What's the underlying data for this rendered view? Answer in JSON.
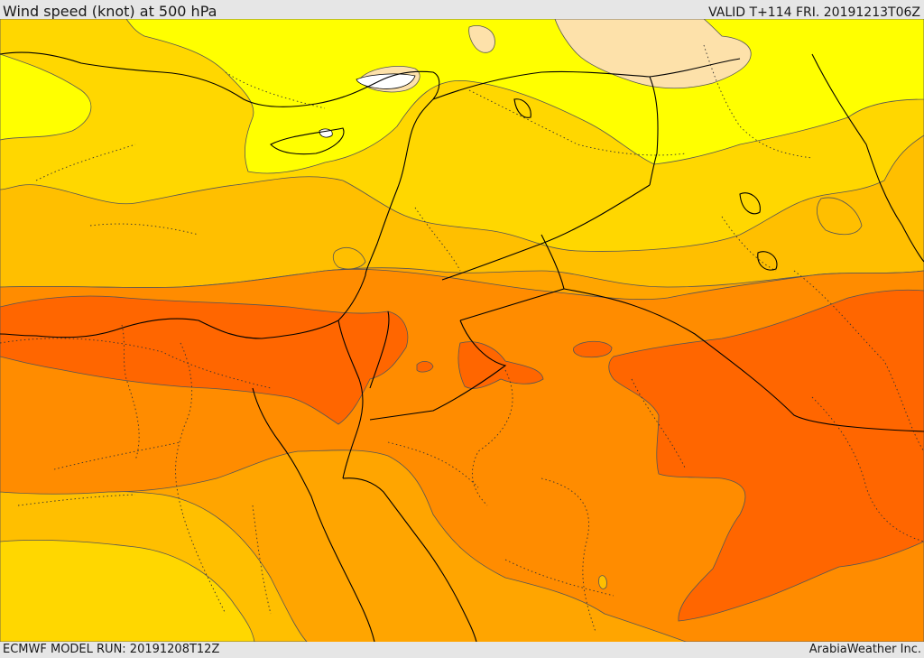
{
  "header": {
    "title": "Wind speed (knot) at 500 hPa",
    "valid": "VALID T+114 FRI. 20191213T06Z"
  },
  "footer": {
    "model_run": "ECMWF MODEL RUN: 20191208T12Z",
    "credit": "ArabiaWeather Inc."
  },
  "palette": {
    "very_light": "#fde1aa",
    "light_yellow": "#ffff00",
    "yellow": "#ffd700",
    "yellow_orange": "#ffbf00",
    "light_orange": "#ffa500",
    "orange": "#ff8c00",
    "dark_orange": "#ff6600",
    "border_black": "#000000",
    "contour_line": "#555555"
  }
}
